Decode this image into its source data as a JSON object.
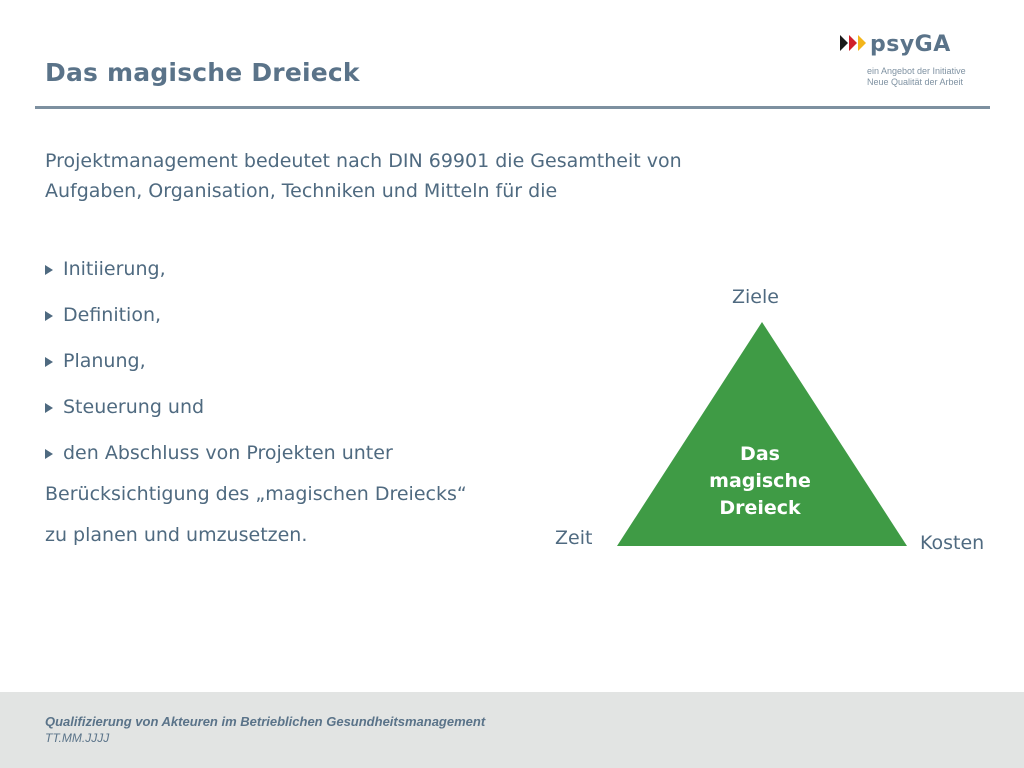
{
  "slide": {
    "title": "Das magische Dreieck"
  },
  "logo": {
    "name": "psyGA",
    "subtitle_line1": "ein Angebot der Initiative",
    "subtitle_line2": "Neue Qualität der Arbeit",
    "arrow_colors": [
      "#1a1a1a",
      "#d0202a",
      "#f3b51a"
    ]
  },
  "intro": {
    "line1": "Projektmanagement bedeutet nach DIN 69901 die Gesamtheit von",
    "line2": "Aufgaben, Organisation, Techniken und Mitteln für die"
  },
  "bullets": [
    "Initiierung,",
    "Definition,",
    "Planung,",
    "Steuerung und",
    "den Abschluss von Projekten unter"
  ],
  "continuation": {
    "line1": "Berücksichtigung des „magischen Dreiecks“",
    "line2": "zu planen und umzusetzen."
  },
  "triangle": {
    "top_label": "Ziele",
    "left_label": "Zeit",
    "right_label": "Kosten",
    "center_line1": "Das",
    "center_line2": "magische",
    "center_line3": "Dreieck",
    "fill_color": "#3f9b45"
  },
  "footer": {
    "title": "Qualifizierung von Akteuren im Betrieblichen Gesundheitsmanagement",
    "date": "TT.MM.JJJJ"
  }
}
